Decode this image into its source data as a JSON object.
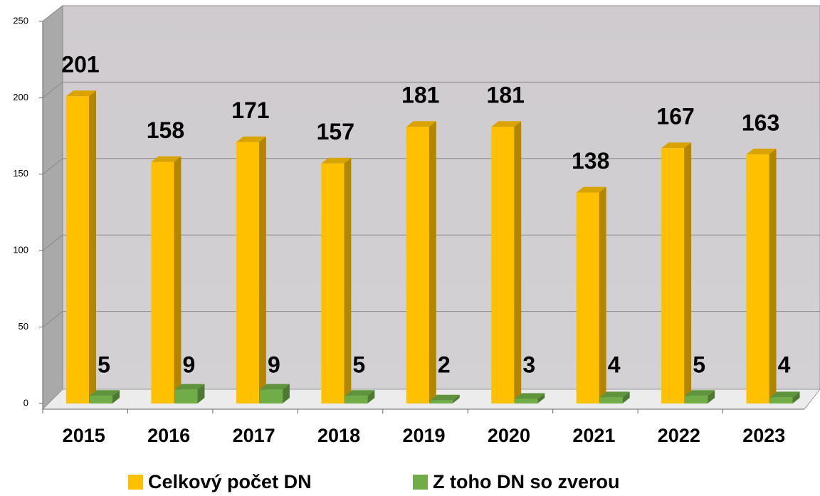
{
  "chart_data": {
    "type": "bar3d",
    "categories": [
      "2015",
      "2016",
      "2017",
      "2018",
      "2019",
      "2020",
      "2021",
      "2022",
      "2023"
    ],
    "series": [
      {
        "name": "Celkový počet DN",
        "color": "#FFC000",
        "values": [
          201,
          158,
          171,
          157,
          181,
          181,
          138,
          167,
          163
        ]
      },
      {
        "name": "Z toho DN so zverou",
        "color": "#70AD47",
        "values": [
          5,
          9,
          9,
          5,
          2,
          3,
          4,
          5,
          4
        ]
      }
    ],
    "ylim": [
      0,
      250
    ],
    "yticks": [
      0,
      50,
      100,
      150,
      200,
      250
    ],
    "grid": true,
    "legend": "bottom"
  }
}
